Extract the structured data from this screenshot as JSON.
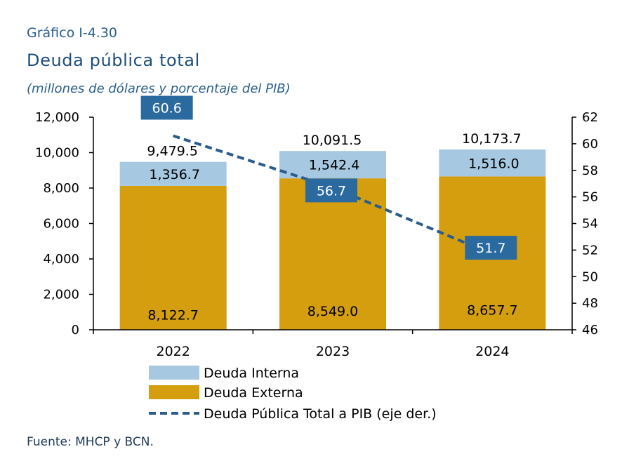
{
  "header": {
    "code": "Gráfico I-4.30",
    "title": "Deuda pública total",
    "subtitle": "(millones de dólares y porcentaje del PIB)"
  },
  "source": "Fuente: MHCP y BCN.",
  "colors": {
    "interna": "#a6c8e0",
    "externa": "#d49e0f",
    "line": "#2b5d8c",
    "label_box": "#2b6a9f"
  },
  "chart_data": {
    "type": "bar",
    "stacked": true,
    "categories": [
      "2022",
      "2023",
      "2024"
    ],
    "series": [
      {
        "name": "Deuda Externa",
        "values": [
          8122.7,
          8549.0,
          8657.7
        ],
        "labels": [
          "8,122.7",
          "8,549.0",
          "8,657.7"
        ]
      },
      {
        "name": "Deuda Interna",
        "values": [
          1356.7,
          1542.4,
          1516.0
        ],
        "labels": [
          "1,356.7",
          "1,542.4",
          "1,516.0"
        ]
      }
    ],
    "totals": {
      "values": [
        9479.5,
        10091.5,
        10173.7
      ],
      "labels": [
        "9,479.5",
        "10,091.5",
        "10,173.7"
      ]
    },
    "line_series": {
      "name": "Deuda Pública Total a PIB (eje der.)",
      "values": [
        60.6,
        56.7,
        51.7
      ],
      "labels": [
        "60.6",
        "56.7",
        "51.7"
      ],
      "axis": "right",
      "style": "dashed"
    },
    "y_left": {
      "ylim": [
        0,
        12000
      ],
      "ticks": [
        "0",
        "2,000",
        "4,000",
        "6,000",
        "8,000",
        "10,000",
        "12,000"
      ]
    },
    "y_right": {
      "ylim": [
        46,
        62
      ],
      "ticks": [
        "46",
        "48",
        "50",
        "52",
        "54",
        "56",
        "58",
        "60",
        "62"
      ]
    },
    "legend": {
      "position": "bottom",
      "entries": [
        "Deuda Interna",
        "Deuda Externa",
        "Deuda Pública Total a PIB (eje der.)"
      ]
    },
    "grid": false
  }
}
